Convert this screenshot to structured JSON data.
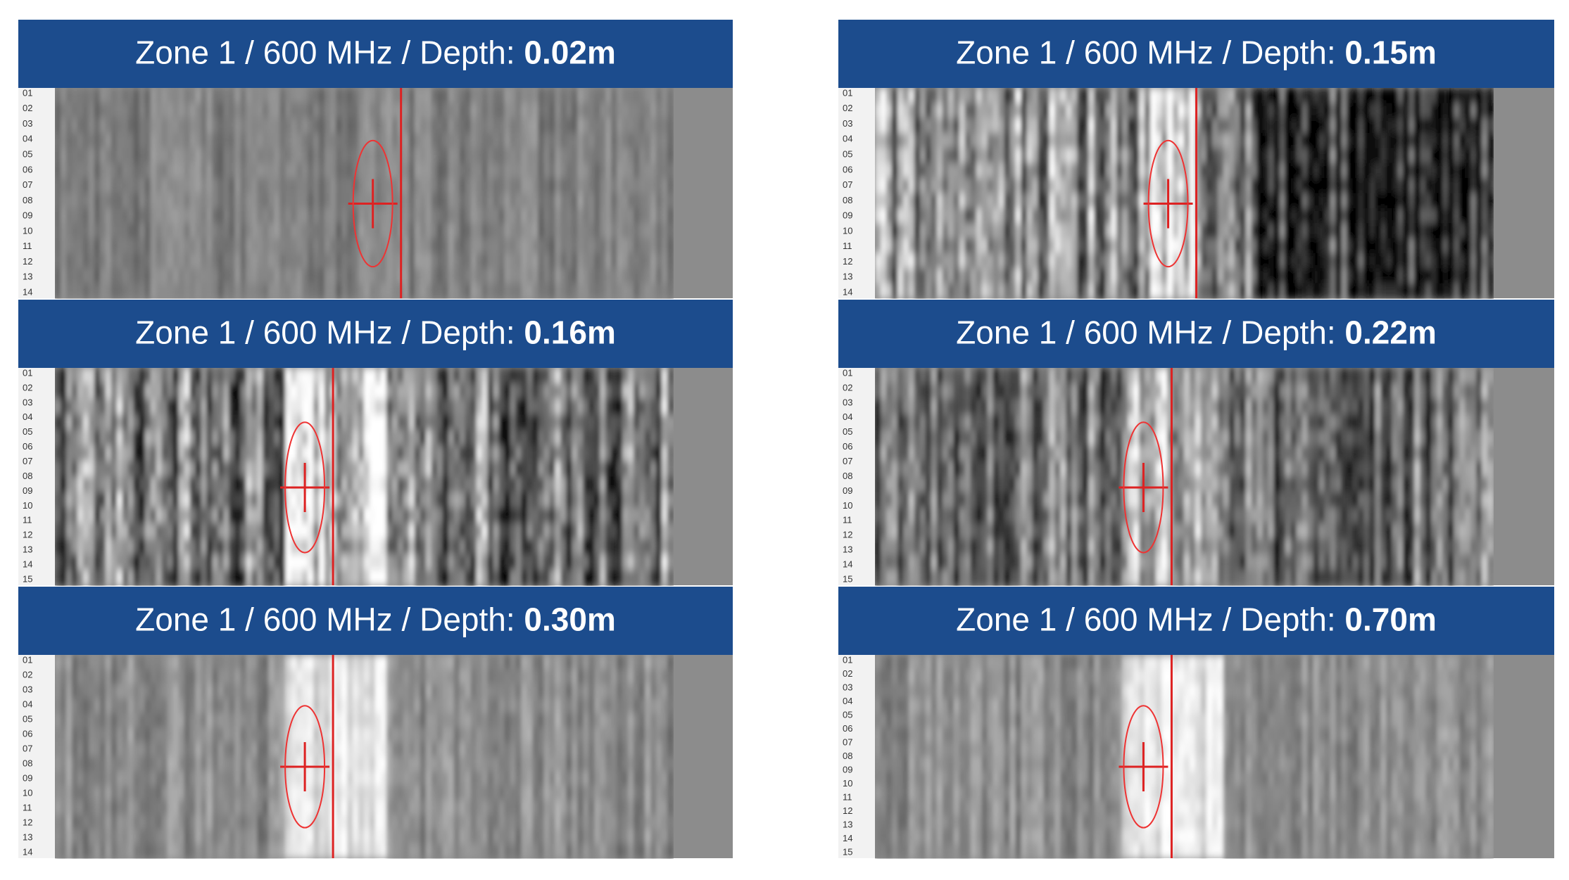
{
  "panels": [
    {
      "title": "Zone 1 / 600 MHz / Depth:",
      "depth": "0.02m",
      "rows": [
        "01",
        "02",
        "03",
        "04",
        "05",
        "06",
        "07",
        "08",
        "09",
        "10",
        "11",
        "12",
        "13",
        "14"
      ]
    },
    {
      "title": "Zone 1 / 600 MHz / Depth:",
      "depth": "0.15m",
      "rows": [
        "01",
        "02",
        "03",
        "04",
        "05",
        "06",
        "07",
        "08",
        "09",
        "10",
        "11",
        "12",
        "13",
        "14"
      ]
    },
    {
      "title": "Zone 1 / 600 MHz / Depth:",
      "depth": "0.16m",
      "rows": [
        "01",
        "02",
        "03",
        "04",
        "05",
        "06",
        "07",
        "08",
        "09",
        "10",
        "11",
        "12",
        "13",
        "14",
        "15"
      ]
    },
    {
      "title": "Zone 1 / 600 MHz / Depth:",
      "depth": "0.22m",
      "rows": [
        "01",
        "02",
        "03",
        "04",
        "05",
        "06",
        "07",
        "08",
        "09",
        "10",
        "11",
        "12",
        "13",
        "14",
        "15"
      ]
    },
    {
      "title": "Zone 1 / 600 MHz / Depth:",
      "depth": "0.30m",
      "rows": [
        "01",
        "02",
        "03",
        "04",
        "05",
        "06",
        "07",
        "08",
        "09",
        "10",
        "11",
        "12",
        "13",
        "14"
      ]
    },
    {
      "title": "Zone 1 / 600 MHz / Depth:",
      "depth": "0.70m",
      "rows": [
        "01",
        "02",
        "03",
        "04",
        "05",
        "06",
        "07",
        "08",
        "09",
        "10",
        "11",
        "12",
        "13",
        "14",
        "15"
      ]
    }
  ]
}
